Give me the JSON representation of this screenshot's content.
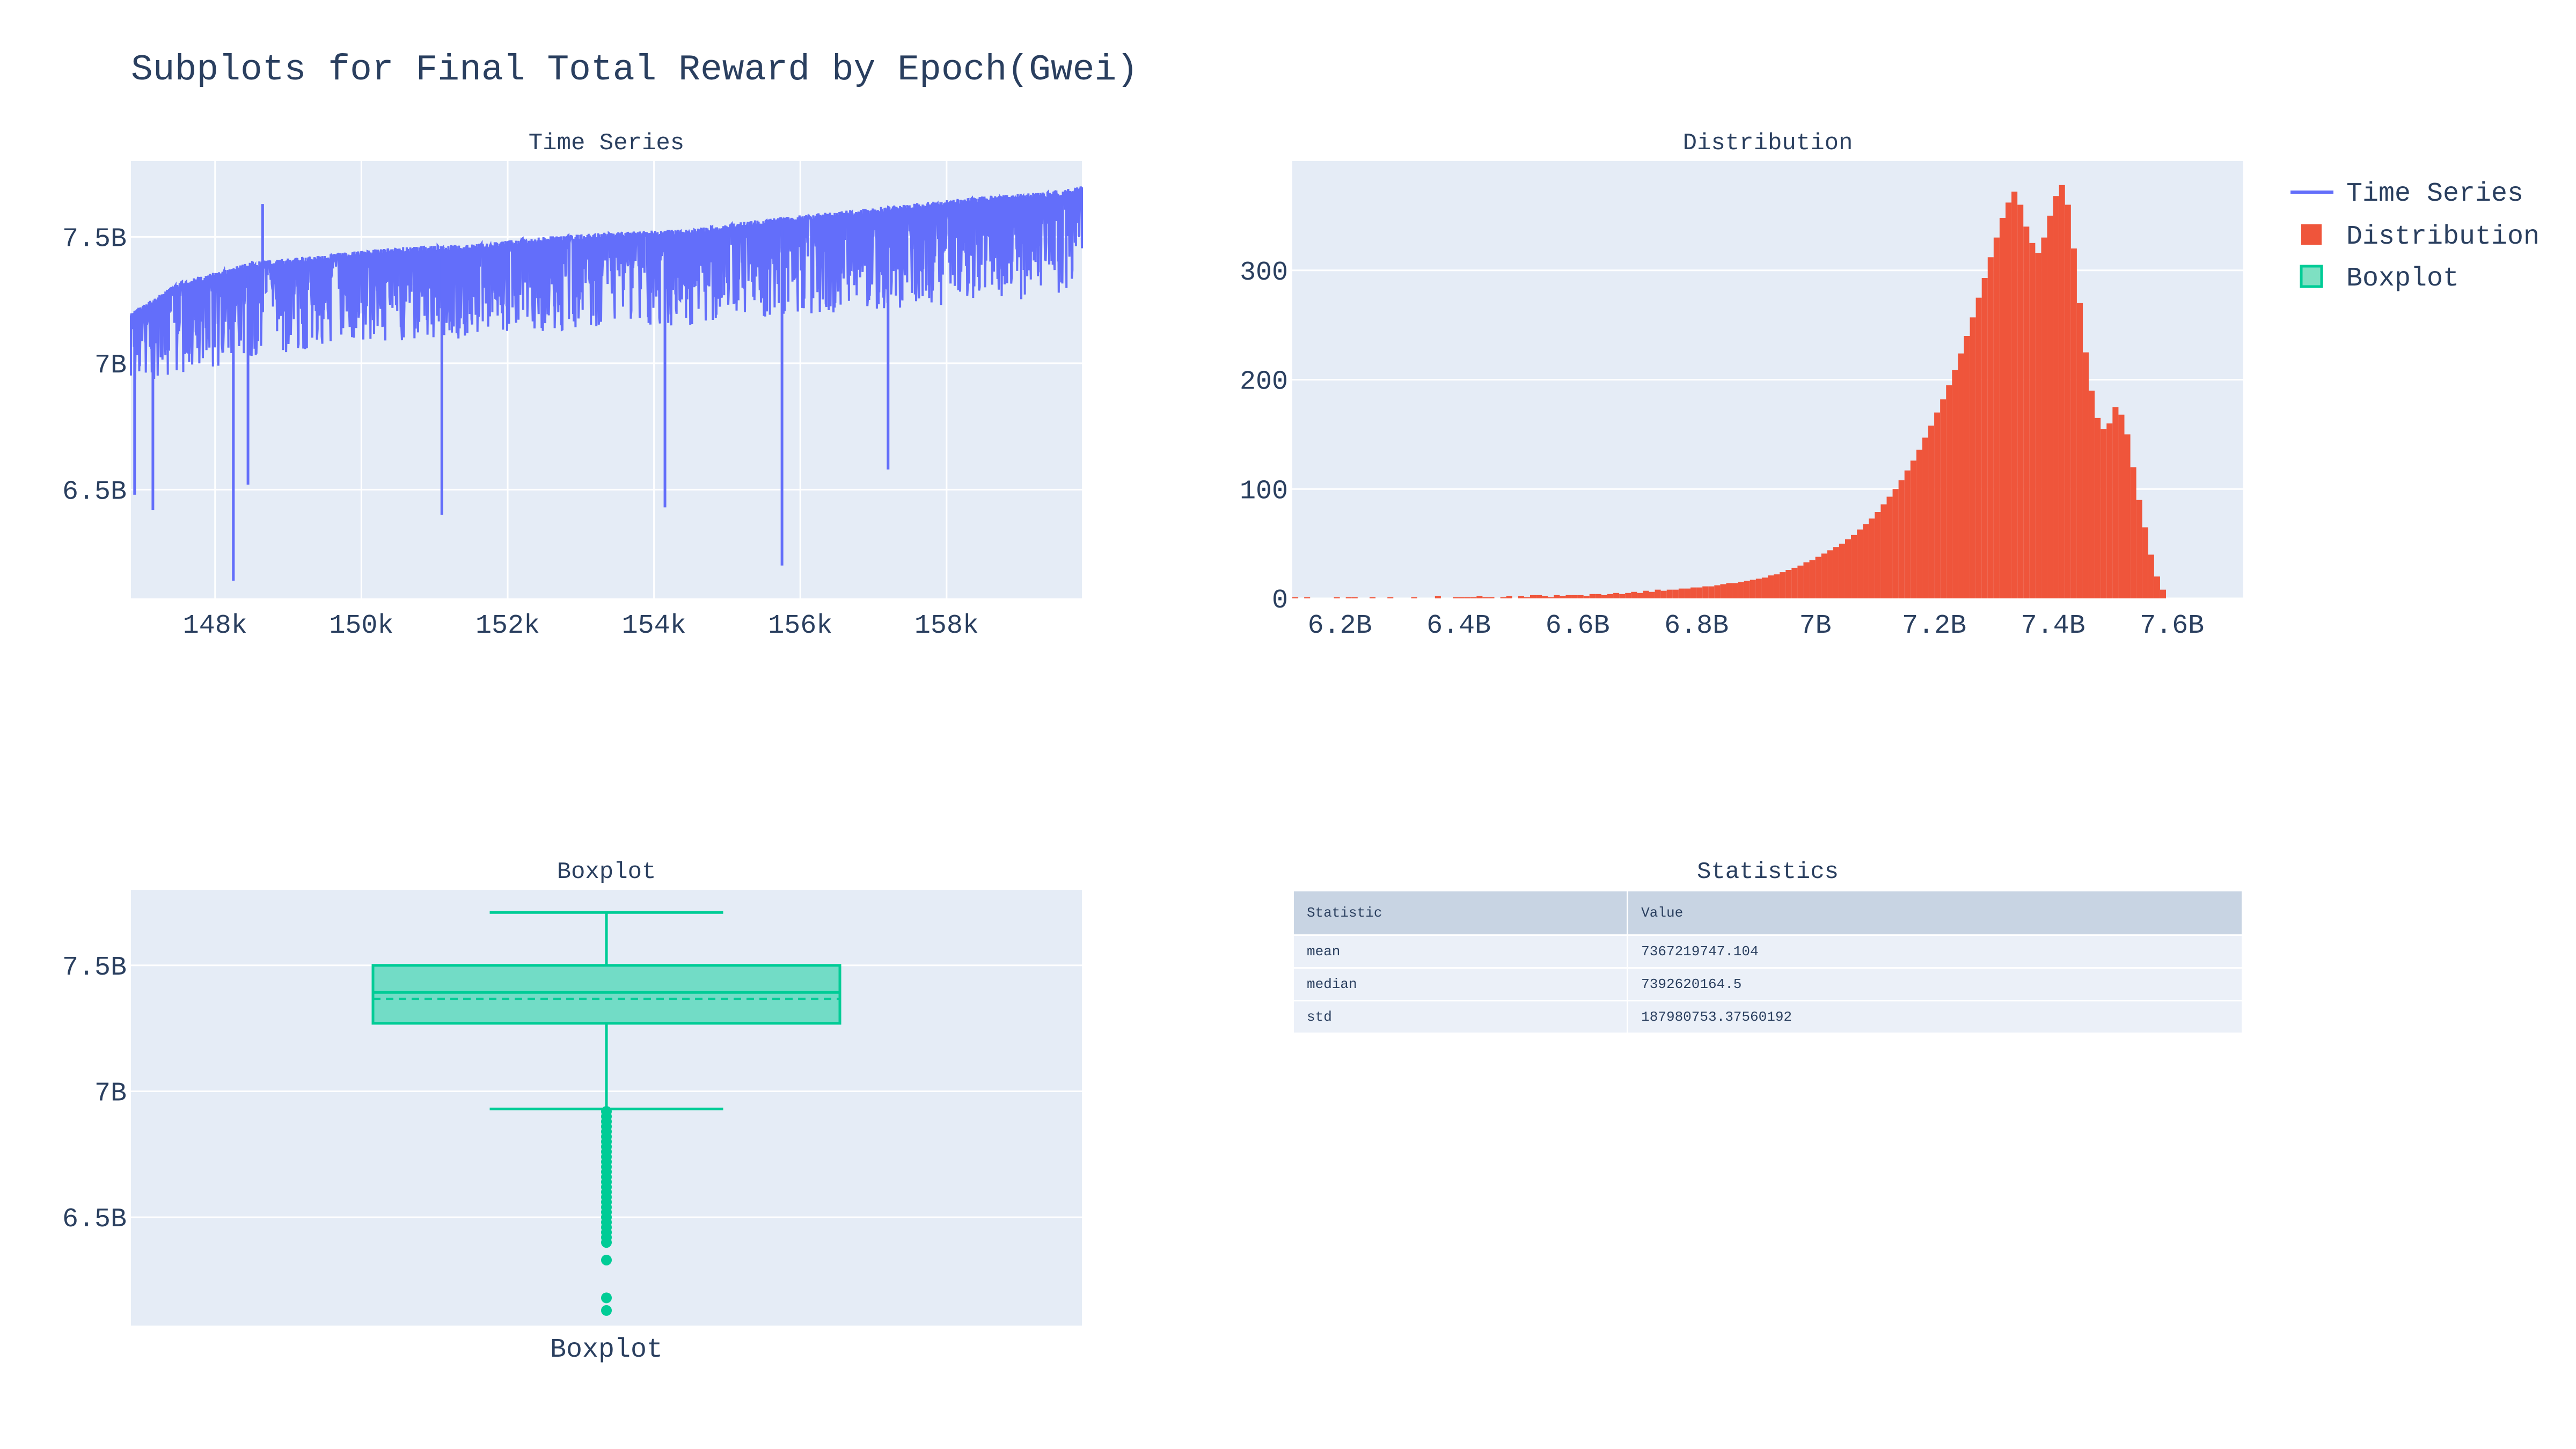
{
  "figure": {
    "title": "Subplots for Final Total Reward by Epoch(Gwei)",
    "colors": {
      "plot_bg": "#e5ecf6",
      "grid": "#ffffff",
      "text": "#2a3f5f",
      "time_series": "#636efa",
      "distribution": "#ef553b",
      "boxplot": "#00cc96",
      "table_header": "#c8d4e3",
      "table_cell": "#ebf0f8"
    }
  },
  "legend": {
    "placement": "top-right",
    "items": [
      {
        "label": "Time Series",
        "symbol": "line"
      },
      {
        "label": "Distribution",
        "symbol": "bar"
      },
      {
        "label": "Boxplot",
        "symbol": "box"
      }
    ]
  },
  "chart_data": [
    {
      "type": "line",
      "title": "Time Series",
      "series_name": "Time Series",
      "x_range": [
        146850,
        159850
      ],
      "y_range": [
        6070000000.0,
        7800000000.0
      ],
      "x_ticks": [
        148000,
        150000,
        152000,
        154000,
        156000,
        158000
      ],
      "x_tick_labels": [
        "148k",
        "150k",
        "152k",
        "154k",
        "156k",
        "158k"
      ],
      "y_ticks": [
        6500000000.0,
        7000000000.0,
        7500000000.0
      ],
      "y_tick_labels": [
        "6.5B",
        "7B",
        "7.5B"
      ],
      "grid": true,
      "upper_envelope": [
        [
          146850,
          7200000000.0
        ],
        [
          147500,
          7320000000.0
        ],
        [
          148500,
          7400000000.0
        ],
        [
          149500,
          7430000000.0
        ],
        [
          150500,
          7460000000.0
        ],
        [
          151500,
          7470000000.0
        ],
        [
          152500,
          7500000000.0
        ],
        [
          153500,
          7520000000.0
        ],
        [
          154500,
          7530000000.0
        ],
        [
          155500,
          7570000000.0
        ],
        [
          156500,
          7600000000.0
        ],
        [
          157500,
          7630000000.0
        ],
        [
          158500,
          7660000000.0
        ],
        [
          159500,
          7680000000.0
        ],
        [
          159850,
          7700000000.0
        ]
      ],
      "lower_envelope": [
        [
          146850,
          6900000000.0
        ],
        [
          147500,
          6950000000.0
        ],
        [
          148500,
          7000000000.0
        ],
        [
          149500,
          7050000000.0
        ],
        [
          150500,
          7080000000.0
        ],
        [
          151500,
          7100000000.0
        ],
        [
          152500,
          7120000000.0
        ],
        [
          153500,
          7140000000.0
        ],
        [
          154500,
          7150000000.0
        ],
        [
          155500,
          7180000000.0
        ],
        [
          156500,
          7200000000.0
        ],
        [
          157500,
          7220000000.0
        ],
        [
          158500,
          7240000000.0
        ],
        [
          159500,
          7260000000.0
        ],
        [
          159850,
          7280000000.0
        ]
      ],
      "notable_spikes": [
        [
          148250,
          6140000000.0
        ],
        [
          148650,
          7630000000.0
        ],
        [
          148450,
          6520000000.0
        ],
        [
          151100,
          6400000000.0
        ],
        [
          154150,
          6430000000.0
        ],
        [
          155750,
          6200000000.0
        ],
        [
          147150,
          6420000000.0
        ],
        [
          146900,
          6480000000.0
        ],
        [
          157200,
          6580000000.0
        ]
      ]
    },
    {
      "type": "bar",
      "title": "Distribution",
      "series_name": "Distribution",
      "x_range": [
        6120000000.0,
        7720000000.0
      ],
      "y_range": [
        0,
        400
      ],
      "x_ticks": [
        6200000000.0,
        6400000000.0,
        6600000000.0,
        6800000000.0,
        7000000000.0,
        7200000000.0,
        7400000000.0,
        7600000000.0
      ],
      "x_tick_labels": [
        "6.2B",
        "6.4B",
        "6.6B",
        "6.8B",
        "7B",
        "7.2B",
        "7.4B",
        "7.6B"
      ],
      "y_ticks": [
        0,
        100,
        200,
        300
      ],
      "y_tick_labels": [
        "0",
        "100",
        "200",
        "300"
      ],
      "grid": true,
      "bin_start": 6120000000.0,
      "bin_width": 10000000.0,
      "counts": [
        1,
        0,
        1,
        0,
        0,
        0,
        0,
        1,
        0,
        1,
        1,
        0,
        0,
        1,
        0,
        0,
        1,
        0,
        0,
        0,
        1,
        0,
        0,
        0,
        2,
        0,
        0,
        1,
        1,
        1,
        1,
        2,
        1,
        1,
        0,
        1,
        2,
        0,
        2,
        1,
        3,
        3,
        2,
        1,
        3,
        2,
        3,
        3,
        3,
        2,
        4,
        4,
        3,
        4,
        5,
        4,
        5,
        6,
        5,
        7,
        6,
        8,
        7,
        8,
        8,
        9,
        9,
        10,
        10,
        11,
        11,
        12,
        13,
        14,
        14,
        15,
        16,
        17,
        18,
        19,
        21,
        22,
        24,
        26,
        28,
        30,
        33,
        35,
        38,
        41,
        44,
        47,
        50,
        54,
        58,
        63,
        68,
        73,
        79,
        86,
        93,
        100,
        108,
        117,
        126,
        136,
        147,
        158,
        170,
        182,
        195,
        209,
        224,
        240,
        257,
        275,
        293,
        312,
        330,
        348,
        362,
        372,
        360,
        340,
        325,
        316,
        330,
        350,
        368,
        378,
        360,
        320,
        270,
        225,
        190,
        165,
        155,
        160,
        175,
        168,
        150,
        120,
        90,
        65,
        40,
        20,
        8
      ]
    },
    {
      "type": "box",
      "title": "Boxplot",
      "series_name": "Boxplot",
      "category": "Boxplot",
      "y_range": [
        6070000000.0,
        7800000000.0
      ],
      "y_ticks": [
        6500000000.0,
        7000000000.0,
        7500000000.0
      ],
      "y_tick_labels": [
        "6.5B",
        "7B",
        "7.5B"
      ],
      "grid": true,
      "q1": 7270000000.0,
      "median": 7392600000.0,
      "mean": 7367200000.0,
      "q3": 7500000000.0,
      "upper_fence": 7710000000.0,
      "lower_fence": 6930000000.0,
      "outliers": [
        6920000000.0,
        6900000000.0,
        6880000000.0,
        6860000000.0,
        6840000000.0,
        6820000000.0,
        6800000000.0,
        6780000000.0,
        6760000000.0,
        6740000000.0,
        6720000000.0,
        6700000000.0,
        6680000000.0,
        6660000000.0,
        6640000000.0,
        6620000000.0,
        6600000000.0,
        6580000000.0,
        6560000000.0,
        6540000000.0,
        6520000000.0,
        6500000000.0,
        6480000000.0,
        6460000000.0,
        6440000000.0,
        6420000000.0,
        6400000000.0,
        6330000000.0,
        6180000000.0,
        6130000000.0
      ]
    },
    {
      "type": "table",
      "title": "Statistics",
      "columns": [
        "Statistic",
        "Value"
      ],
      "rows": [
        [
          "mean",
          "7367219747.104"
        ],
        [
          "median",
          "7392620164.5"
        ],
        [
          "std",
          "187980753.37560192"
        ]
      ]
    }
  ]
}
